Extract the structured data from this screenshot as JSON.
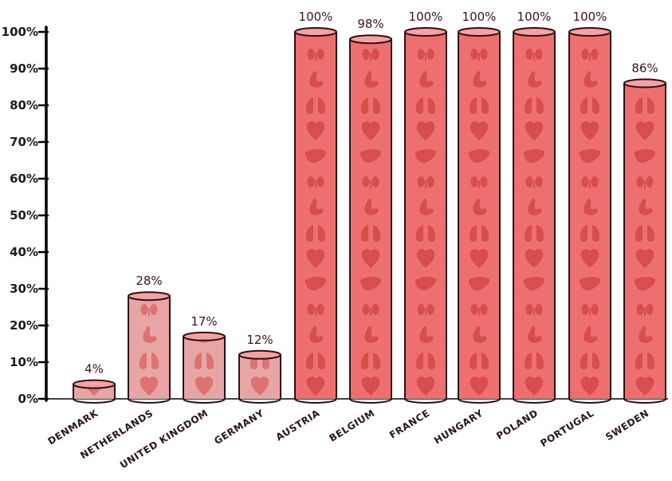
{
  "chart_data": {
    "type": "bar",
    "categories": [
      "Denmark",
      "Netherlands",
      "United Kingdom",
      "Germany",
      "Austria",
      "Belgium",
      "France",
      "Hungary",
      "Poland",
      "Portugal",
      "Sweden"
    ],
    "category_labels": [
      "DENMARK",
      "NETHERLANDS",
      "UNITED KINGDOM",
      "GERMANY",
      "AUSTRIA",
      "BELGIUM",
      "FRANCE",
      "HUNGARY",
      "POLAND",
      "PORTUGAL",
      "SWEDEN"
    ],
    "values": [
      4,
      28,
      17,
      12,
      100,
      98,
      100,
      100,
      100,
      100,
      86
    ],
    "data_labels": [
      "4%",
      "28%",
      "17%",
      "12%",
      "100%",
      "98%",
      "100%",
      "100%",
      "100%",
      "100%",
      "86%"
    ],
    "y_ticks": [
      0,
      10,
      20,
      30,
      40,
      50,
      60,
      70,
      80,
      90,
      100
    ],
    "y_tick_labels": [
      "0%",
      "10%",
      "20%",
      "30%",
      "40%",
      "50%",
      "60%",
      "70%",
      "80%",
      "90%",
      "100%"
    ],
    "ylim": [
      0,
      100
    ],
    "title": "",
    "xlabel": "",
    "ylabel": "",
    "grid": false,
    "bar_style": "cylinders filled with organ silhouettes",
    "colors": {
      "full_bar": "#ee6f6f",
      "low_bar": "#e7a5a5",
      "organ": "#d64a4a",
      "outline": "#2b1116",
      "axis": "#000000"
    }
  }
}
